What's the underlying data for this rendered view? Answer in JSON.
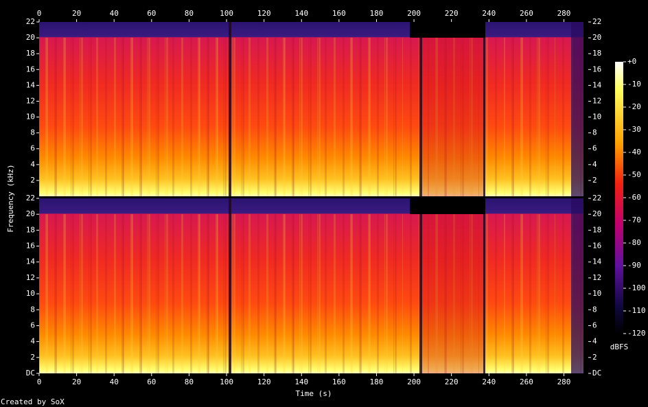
{
  "chart_data": {
    "type": "spectrogram",
    "xlabel": "Time (s)",
    "ylabel": "Frequency (kHz)",
    "xlim": [
      0,
      293
    ],
    "xticks": [
      0,
      20,
      40,
      60,
      80,
      100,
      120,
      140,
      160,
      180,
      200,
      220,
      240,
      260,
      280
    ],
    "channels": [
      {
        "ylim": [
          0,
          22
        ],
        "yticks": [
          2,
          4,
          6,
          8,
          10,
          12,
          14,
          16,
          18,
          20,
          22
        ]
      },
      {
        "ylim": [
          0,
          22
        ],
        "yticks": [
          {
            "value": 0,
            "label": "DC"
          },
          2,
          4,
          6,
          8,
          10,
          12,
          14,
          16,
          18,
          20,
          22
        ]
      }
    ],
    "colorbar": {
      "label": "dBFS",
      "clim": [
        -120,
        0
      ],
      "ticks": [
        {
          "value": 0,
          "label": "+0"
        },
        -10,
        -20,
        -30,
        -40,
        -50,
        -60,
        -70,
        -80,
        -90,
        -100,
        -110,
        -120
      ]
    },
    "footer": "Created by SoX"
  }
}
